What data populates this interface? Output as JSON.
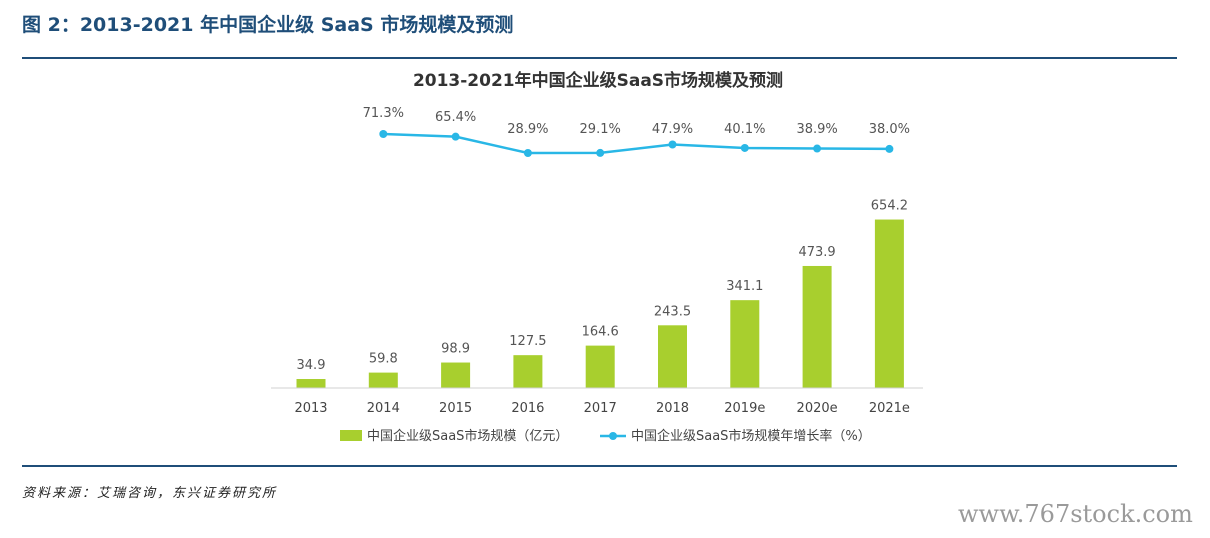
{
  "figure": {
    "caption": "图 2：2013-2021 年中国企业级 SaaS 市场规模及预测",
    "source": "资料来源：艾瑞咨询，东兴证券研究所",
    "watermark": "www.767stock.com"
  },
  "colors": {
    "bar": "#a8cf2e",
    "line": "#29b7e6",
    "caption": "#1f4e79",
    "rule": "#1f4e79"
  },
  "chart_data": {
    "type": "bar",
    "title": "2013-2021年中国企业级SaaS市场规模及预测",
    "categories": [
      "2013",
      "2014",
      "2015",
      "2016",
      "2017",
      "2018",
      "2019e",
      "2020e",
      "2021e"
    ],
    "series": [
      {
        "name": "中国企业级SaaS市场规模（亿元）",
        "type": "bar",
        "values": [
          34.9,
          59.8,
          98.9,
          127.5,
          164.6,
          243.5,
          341.1,
          473.9,
          654.2
        ],
        "labels": [
          "34.9",
          "59.8",
          "98.9",
          "127.5",
          "164.6",
          "243.5",
          "341.1",
          "473.9",
          "654.2"
        ]
      },
      {
        "name": "中国企业级SaaS市场规模年增长率（%）",
        "type": "line",
        "x": [
          "2014",
          "2015",
          "2016",
          "2017",
          "2018",
          "2019e",
          "2020e",
          "2021e"
        ],
        "values": [
          71.3,
          65.4,
          28.9,
          29.1,
          47.9,
          40.1,
          38.9,
          38.0
        ],
        "labels": [
          "71.3%",
          "65.4%",
          "28.9%",
          "29.1%",
          "47.9%",
          "40.1%",
          "38.9%",
          "38.0%"
        ]
      }
    ],
    "legend": "bottom",
    "grid": false
  }
}
